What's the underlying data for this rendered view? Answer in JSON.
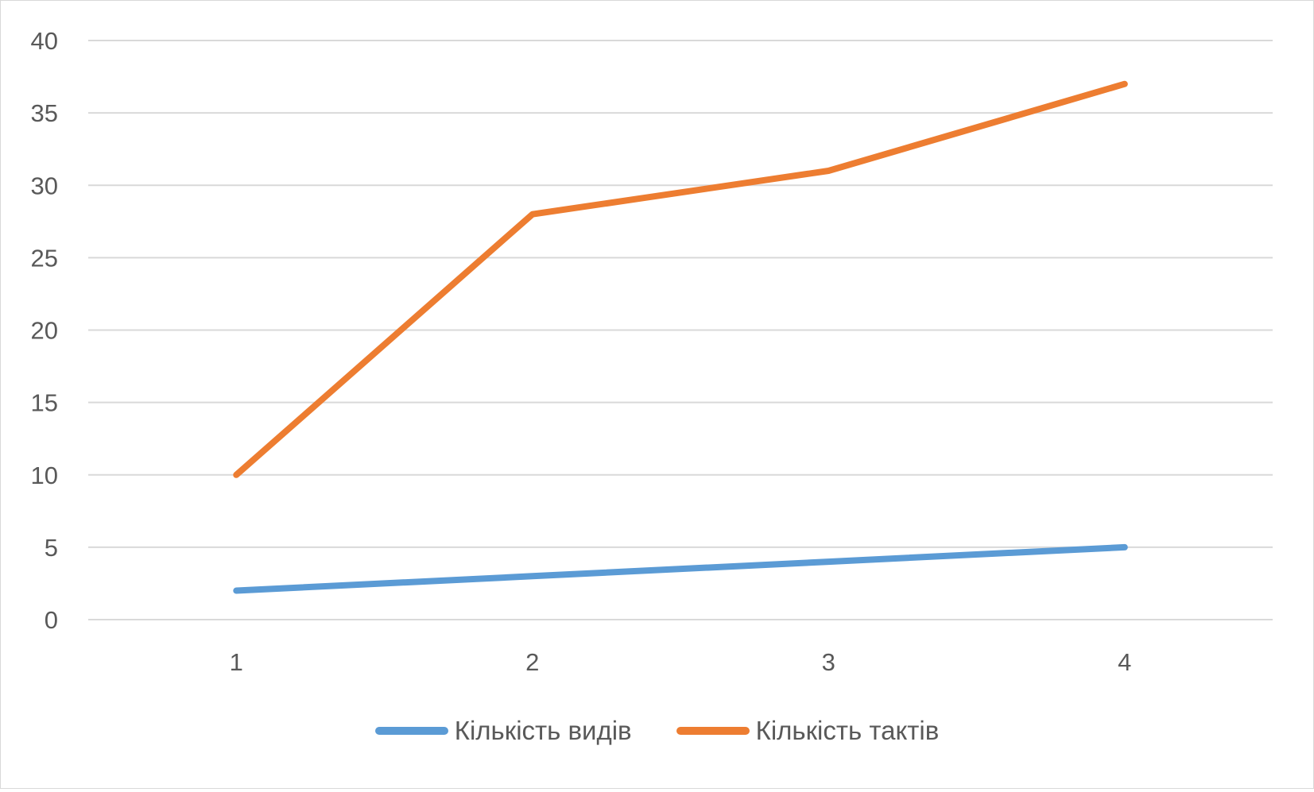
{
  "chart_data": {
    "type": "line",
    "title": "",
    "xlabel": "",
    "ylabel": "",
    "categories": [
      "1",
      "2",
      "3",
      "4"
    ],
    "ylim": [
      0,
      40
    ],
    "yticks": [
      "0",
      "5",
      "10",
      "15",
      "20",
      "25",
      "30",
      "35",
      "40"
    ],
    "grid": true,
    "legend_position": "bottom",
    "series": [
      {
        "name": "Кількість видів",
        "color": "#5B9BD5",
        "values": [
          2,
          3,
          4,
          5
        ]
      },
      {
        "name": "Кількість тактів",
        "color": "#ED7D31",
        "values": [
          10,
          28,
          31,
          37
        ]
      }
    ]
  }
}
